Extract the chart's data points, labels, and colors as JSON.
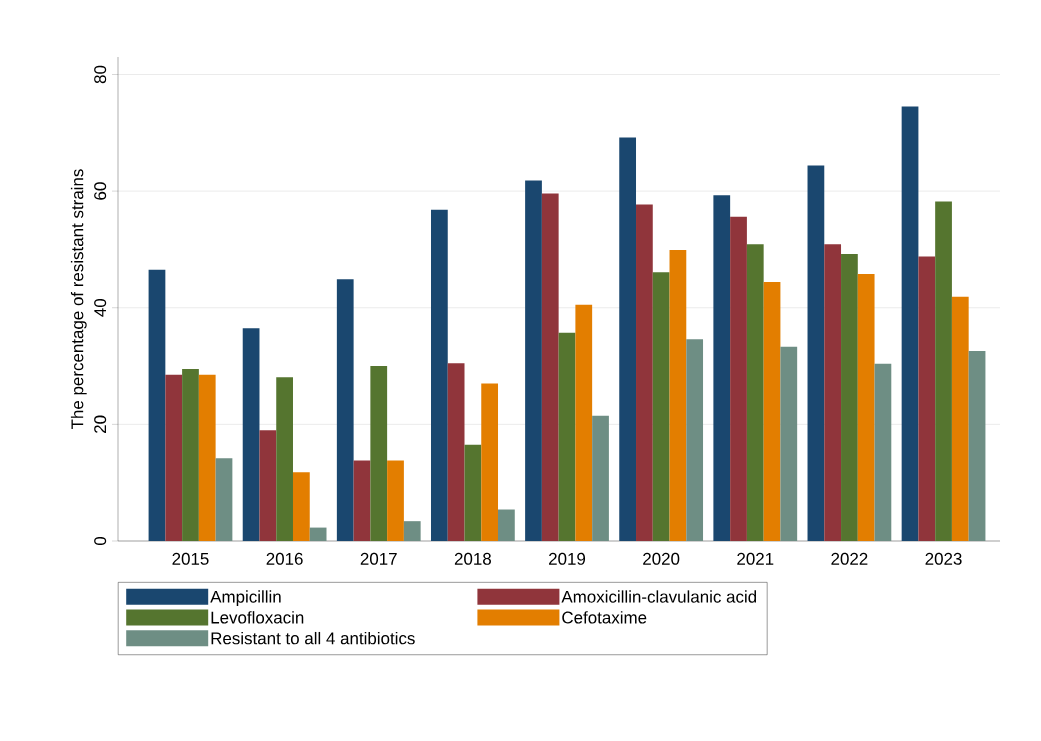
{
  "chart_data": {
    "type": "bar",
    "ylabel": "The percentage of resistant strains",
    "categories": [
      "2015",
      "2016",
      "2017",
      "2018",
      "2019",
      "2020",
      "2021",
      "2022",
      "2023"
    ],
    "series": [
      {
        "name": "Ampicillin",
        "color": "#1a476f",
        "values": [
          46.5,
          36.5,
          44.9,
          56.8,
          61.8,
          69.2,
          59.3,
          64.4,
          74.5
        ]
      },
      {
        "name": "Amoxicillin-clavulanic acid",
        "color": "#90353b",
        "values": [
          28.5,
          19.0,
          13.8,
          30.5,
          59.6,
          57.7,
          55.6,
          50.9,
          48.8
        ]
      },
      {
        "name": "Levofloxacin",
        "color": "#55752f",
        "values": [
          29.5,
          28.1,
          30.0,
          16.5,
          35.7,
          46.1,
          50.9,
          49.2,
          58.2
        ]
      },
      {
        "name": "Cefotaxime",
        "color": "#e37e00",
        "values": [
          28.5,
          11.8,
          13.8,
          27.0,
          40.5,
          49.9,
          44.4,
          45.8,
          41.9
        ]
      },
      {
        "name": "Resistant to all 4 antibiotics",
        "color": "#6e8e84",
        "values": [
          14.2,
          2.3,
          3.4,
          5.4,
          21.5,
          34.6,
          33.3,
          30.4,
          32.6
        ]
      }
    ],
    "ylim": [
      0,
      83
    ],
    "yticks": [
      0,
      20,
      40,
      60,
      80
    ],
    "grid": "y",
    "legend": "bottom"
  }
}
